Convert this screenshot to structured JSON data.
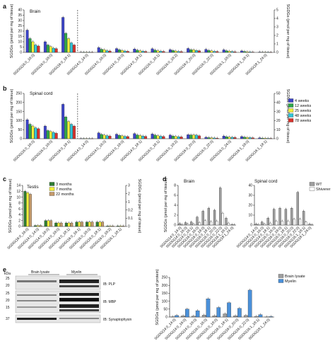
{
  "figure": {
    "panel_labels": [
      "a",
      "b",
      "c",
      "d",
      "e"
    ]
  },
  "series_colors": {
    "4 weeks": "#3c44c8",
    "12 weeks": "#2ea84a",
    "25 weeks": "#f2ef3a",
    "48 weeks": "#2fc5d8",
    "78 weeks": "#d8322c",
    "3 months": "#2e7d32",
    "7 months": "#f2ef3a",
    "22 months": "#c49a6c",
    "WT": "#9e9e9e",
    "Shiverer": "#ffffff",
    "Brain lysate": "#9e9e9e",
    "Myelin": "#4a90d9"
  },
  "chart_data": [
    {
      "panel": "a",
      "type": "bar",
      "title": "Brain",
      "ylabel": "SGDGs (pmol per mg of tissue)",
      "ylabel_right": "SGDGs (pmol per mg of tissue)",
      "ylim": [
        0,
        40
      ],
      "yticks": [
        0,
        5,
        10,
        15,
        20,
        25,
        30,
        35,
        40
      ],
      "ylim_right": [
        0,
        5
      ],
      "yticks_right": [
        0,
        1,
        2,
        3,
        4,
        5
      ],
      "dashed_split_after_index": 2,
      "categories": [
        "SGDG(16:0_16:0)",
        "SGDG(16:0_18:0)",
        "SGDG(16:0_18:1)",
        "SGDG(14:0_14:0)",
        "SGDG(14:0_16:0)",
        "SGDG(14:0_18:0)",
        "SGDG(14:0_18:1)",
        "SGDG(16:0_16:1)",
        "SGDG(16:0_18:2)",
        "SGDG(16:0_20:0)",
        "SGDG(16:0_22:0)",
        "SGDG(16:1_18:0)",
        "SGDG(16:1_18:1)",
        "SGDG(18:1_24:0)"
      ],
      "series": [
        {
          "name": "4 weeks",
          "values": [
            21,
            10,
            33,
            0.2,
            4.5,
            3.6,
            3.2,
            3.4,
            2.6,
            3.7,
            2.9,
            2.4,
            1.4,
            0.3
          ]
        },
        {
          "name": "12 weeks",
          "values": [
            13,
            7,
            18,
            0.1,
            3.0,
            2.5,
            2.1,
            2.2,
            1.8,
            2.6,
            1.9,
            1.5,
            0.9,
            0.2
          ]
        },
        {
          "name": "25 weeks",
          "values": [
            10,
            5.5,
            13,
            0.1,
            2.5,
            1.9,
            1.6,
            1.6,
            1.3,
            2.4,
            1.4,
            1.1,
            0.6,
            0.15
          ]
        },
        {
          "name": "48 weeks",
          "values": [
            7,
            4,
            9,
            0.1,
            1.6,
            1.3,
            1.1,
            1.1,
            0.9,
            1.8,
            1.0,
            0.8,
            0.4,
            0.1
          ]
        },
        {
          "name": "78 weeks",
          "values": [
            6,
            3.5,
            7,
            0.1,
            1.3,
            1.0,
            0.9,
            0.9,
            0.7,
            1.5,
            0.8,
            0.6,
            0.3,
            0.1
          ]
        }
      ]
    },
    {
      "panel": "b",
      "type": "bar",
      "title": "Spinal cord",
      "ylabel": "SGDGs (pmol per mg of tissue)",
      "ylabel_right": "SGDGs (pmol per mg of tissue)",
      "ylim": [
        0,
        250
      ],
      "yticks": [
        0,
        50,
        100,
        150,
        200,
        250
      ],
      "ylim_right": [
        0,
        50
      ],
      "yticks_right": [
        0,
        10,
        20,
        30,
        40,
        50
      ],
      "dashed_split_after_index": 2,
      "legend_position": "right",
      "categories": [
        "SGDG(16:0_16:0)",
        "SGDG(16:0_18:0)",
        "SGDG(16:0_18:1)",
        "SGDG(14:0_14:0)",
        "SGDG(14:0_16:0)",
        "SGDG(14:0_18:0)",
        "SGDG(14:0_18:1)",
        "SGDG(16:0_16:1)",
        "SGDG(16:0_18:2)",
        "SGDG(16:0_20:0)",
        "SGDG(16:0_22:0)",
        "SGDG(16:0_24:0)",
        "SGDG(16:1_18:0)",
        "SGDG(16:1_18:1)"
      ],
      "series": [
        {
          "name": "4 weeks",
          "values": [
            105,
            70,
            190,
            0.8,
            32,
            25,
            28,
            26,
            20,
            22,
            8,
            15,
            12,
            5
          ]
        },
        {
          "name": "12 weeks",
          "values": [
            80,
            45,
            120,
            0.5,
            24,
            19,
            21,
            20,
            15,
            21,
            6,
            11,
            9,
            3
          ]
        },
        {
          "name": "25 weeks",
          "values": [
            70,
            40,
            95,
            0.5,
            20,
            16,
            18,
            17,
            13,
            21,
            5,
            9,
            7,
            2.5
          ]
        },
        {
          "name": "48 weeks",
          "values": [
            60,
            35,
            80,
            0.4,
            17,
            13,
            15,
            14,
            11,
            20,
            4,
            8,
            6,
            2
          ]
        },
        {
          "name": "78 weeks",
          "values": [
            55,
            30,
            70,
            0.4,
            15,
            12,
            13,
            12,
            10,
            16,
            3,
            7,
            5,
            1.8
          ]
        }
      ]
    },
    {
      "panel": "c",
      "type": "bar",
      "title": "Testis",
      "ylabel": "SGDGs (pmol per mg of tissue)",
      "ylabel_right": "SGDGs (pmol per mg of tissue)",
      "ylim": [
        0,
        14
      ],
      "yticks": [
        0,
        2,
        4,
        6,
        8,
        10,
        12,
        14
      ],
      "ylim_right": [
        0,
        3
      ],
      "yticks_right": [
        0,
        0.1,
        0.2,
        1,
        2,
        3
      ],
      "legend_position": "top",
      "categories": [
        "SGDG(16:0_16:0)",
        "SGDG(14:0_14:0)",
        "SGDG(14:0_16:0)",
        "SGDG(14:0_18:0)",
        "SGDG(14:0_18:1)",
        "SGDG(16:0_16:1)",
        "SGDG(16:0_18:0)",
        "SGDG(16:0_18:1)",
        "SGDG(16:0_18:2)",
        "SGDG(16:1_18:1)"
      ],
      "series": [
        {
          "name": "3 months",
          "values": [
            12,
            0.3,
            2.0,
            1.2,
            1.2,
            1.5,
            1.5,
            1.5,
            0.15,
            0.15
          ]
        },
        {
          "name": "7 months",
          "values": [
            11.5,
            0.3,
            2.0,
            1.2,
            1.2,
            1.5,
            1.5,
            1.5,
            0.15,
            0.15
          ]
        },
        {
          "name": "22 months",
          "values": [
            11,
            0.3,
            2.0,
            1.2,
            1.2,
            1.5,
            1.5,
            1.5,
            0.15,
            0.15
          ]
        }
      ]
    },
    {
      "panel": "d",
      "type": "bar",
      "title": "Brain",
      "ylabel": "SGDGs (pmol per mg of tissue)",
      "ylim": [
        0,
        8
      ],
      "yticks": [
        0,
        2,
        4,
        6,
        8
      ],
      "categories": [
        "SGDG(14:0_14:0)",
        "SGDG(14:0_16:0)",
        "SGDG(14:0_18:1)",
        "SGDG(16:0_16:0)",
        "SGDG(16:0_18:0)",
        "SGDG(16:0_18:1)",
        "SGDG(16:0_20:0)",
        "SGDG(16:0_22:0)",
        "SGDG(16:1_18:1)",
        "SGDG(18:1_24:0)"
      ],
      "series": [
        {
          "name": "WT",
          "values": [
            0.3,
            0.5,
            0.6,
            1.6,
            2.8,
            3.4,
            3.0,
            7.5,
            1.4,
            0.1
          ]
        },
        {
          "name": "Shiverer",
          "values": [
            0.1,
            0.2,
            0.2,
            0.5,
            0.9,
            0.7,
            0.8,
            2.4,
            0.4,
            0.05
          ]
        }
      ]
    },
    {
      "panel": "d",
      "type": "bar",
      "title": "Spinal cord",
      "ylabel": "",
      "ylim": [
        0,
        40
      ],
      "yticks": [
        0,
        10,
        20,
        30,
        40
      ],
      "legend_position": "top-right",
      "categories": [
        "SGDG(14:0_14:0)",
        "SGDG(14:0_16:0)",
        "SGDG(14:0_18:1)",
        "SGDG(16:0_16:0)",
        "SGDG(16:0_18:0)",
        "SGDG(16:0_18:1)",
        "SGDG(16:0_20:0)",
        "SGDG(16:0_22:0)",
        "SGDG(16:1_18:1)",
        "SGDG(18:1_24:0)"
      ],
      "series": [
        {
          "name": "WT",
          "values": [
            1,
            3,
            7,
            16,
            17,
            16,
            17,
            33,
            14,
            1
          ]
        },
        {
          "name": "Shiverer",
          "values": [
            0.5,
            1,
            2,
            4,
            4,
            4,
            6,
            6,
            3,
            0.2
          ]
        }
      ]
    },
    {
      "panel": "e",
      "type": "bar",
      "title": "",
      "ylabel": "SGDGs (pmol per mg of protein)",
      "ylim": [
        0,
        250
      ],
      "yticks": [
        0,
        50,
        100,
        150,
        200,
        250
      ],
      "legend_position": "top-right",
      "categories": [
        "SGDG(14:0_14:0)",
        "SGDG(14:0_16:0)",
        "SGDG(14:0_18:0)",
        "SGDG(16:0_16:0)",
        "SGDG(16:0_18:0)",
        "SGDG(16:0_18:1)",
        "SGDG(16:0_20:0)",
        "SGDG(16:0_22:0)",
        "SGDG(16:1_18:1)",
        "SGDG(18:1_24:0)"
      ],
      "series": [
        {
          "name": "Brain lysate",
          "values": [
            2,
            8,
            6,
            12,
            8,
            20,
            8,
            10,
            4,
            1
          ]
        },
        {
          "name": "Myelin",
          "values": [
            10,
            50,
            40,
            115,
            60,
            90,
            55,
            170,
            15,
            3
          ]
        }
      ]
    }
  ],
  "blot": {
    "kda_label": "kDa",
    "markers": [
      "25",
      "20",
      "25",
      "20",
      "15",
      "37"
    ],
    "groups": [
      "Brain lysate",
      "Myelin"
    ],
    "labels": [
      "IB: PLP",
      "IB: MBP",
      "IB: Synaptophysin"
    ]
  }
}
